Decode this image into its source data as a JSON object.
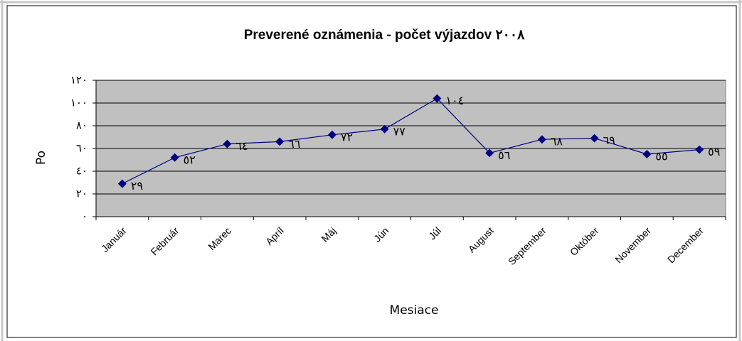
{
  "chart_data": {
    "type": "line",
    "title": "Preverené oznámenia - počet výjazdov ٢٠٠٨",
    "y_label": "Po",
    "x_label": "Mesiace",
    "categories": [
      "Január",
      "Február",
      "Marec",
      "Apríl",
      "Máj",
      "Jún",
      "Júl",
      "August",
      "September",
      "Október",
      "November",
      "December"
    ],
    "values": [
      29,
      52,
      64,
      66,
      72,
      77,
      104,
      56,
      68,
      69,
      55,
      59
    ],
    "value_labels": [
      "٢٩",
      "٥٢",
      "٦٤",
      "٦٦",
      "٧٢",
      "٧٧",
      "١٠٤",
      "٥٦",
      "٦٨",
      "٦٩",
      "٥٥",
      "٥٩"
    ],
    "color": "#000080",
    "ylim": [
      0,
      120
    ],
    "yticks": [
      {
        "value": 0,
        "label": "٠"
      },
      {
        "value": 20,
        "label": "٢٠"
      },
      {
        "value": 40,
        "label": "٤٠"
      },
      {
        "value": 60,
        "label": "٦٠"
      },
      {
        "value": 80,
        "label": "٨٠"
      },
      {
        "value": 100,
        "label": "١٠٠"
      },
      {
        "value": 120,
        "label": "١٢٠"
      }
    ],
    "grid": true
  }
}
